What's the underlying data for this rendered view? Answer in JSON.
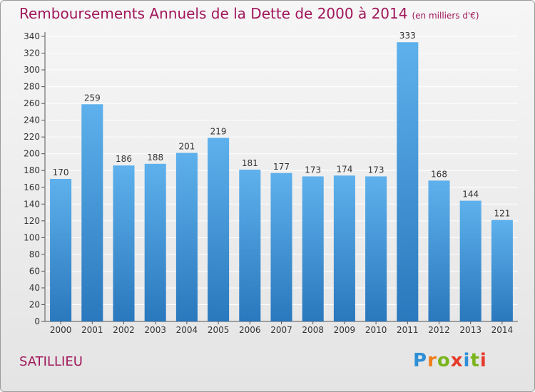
{
  "header": {
    "title": "Remboursements Annuels de la Dette de 2000 à 2014",
    "subtitle": "(en milliers d'€)"
  },
  "footer": {
    "place": "SATILLIEU",
    "brand": "Proxiti"
  },
  "colors": {
    "title": "#a0165a",
    "bar_top": "#5eb1ec",
    "bar_bottom": "#2a78bd",
    "grid": "#ffffff",
    "brand_letters": [
      "#2e8fd8",
      "#f07d1a",
      "#79b51c",
      "#e63a2b",
      "#2e8fd8",
      "#79b51c",
      "#e63a2b"
    ]
  },
  "chart_data": {
    "type": "bar",
    "title": "Remboursements Annuels de la Dette de 2000 à 2014",
    "subtitle": "(en milliers d'€)",
    "xlabel": "",
    "ylabel": "",
    "categories": [
      "2000",
      "2001",
      "2002",
      "2003",
      "2004",
      "2005",
      "2006",
      "2007",
      "2008",
      "2009",
      "2010",
      "2011",
      "2012",
      "2013",
      "2014"
    ],
    "values": [
      170,
      259,
      186,
      188,
      201,
      219,
      181,
      177,
      173,
      174,
      173,
      333,
      168,
      144,
      121
    ],
    "ylim": [
      0,
      340
    ],
    "yticks": [
      0,
      20,
      40,
      60,
      80,
      100,
      120,
      140,
      160,
      180,
      200,
      220,
      240,
      260,
      280,
      300,
      320,
      340
    ],
    "grid": true,
    "legend": "none"
  }
}
